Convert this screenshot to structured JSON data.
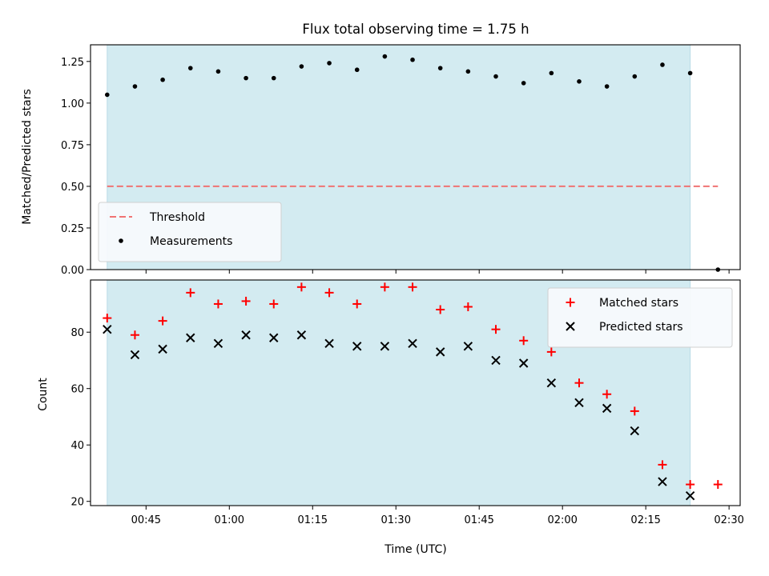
{
  "chart_data": [
    {
      "type": "scatter",
      "title": "Flux total observing time = 1.75 h",
      "xlabel": "",
      "ylabel": "Matched/Predicted stars",
      "ylim": [
        0,
        1.35
      ],
      "yticks": [
        "0.00",
        "0.25",
        "0.50",
        "0.75",
        "1.00",
        "1.25"
      ],
      "shaded_span": [
        "00:38",
        "02:23"
      ],
      "shade_color": "#d3ebf1",
      "threshold": {
        "name": "Threshold",
        "value": 0.5,
        "x_range": [
          "00:38",
          "02:28"
        ],
        "color": "#f07373",
        "style": "dashed"
      },
      "series": [
        {
          "name": "Measurements",
          "color": "#000000",
          "marker": "dot",
          "x": [
            "00:38",
            "00:43",
            "00:48",
            "00:53",
            "00:58",
            "01:03",
            "01:08",
            "01:13",
            "01:18",
            "01:23",
            "01:28",
            "01:33",
            "01:38",
            "01:43",
            "01:48",
            "01:53",
            "01:58",
            "02:03",
            "02:08",
            "02:13",
            "02:18",
            "02:23",
            "02:28"
          ],
          "y": [
            1.05,
            1.1,
            1.14,
            1.21,
            1.19,
            1.15,
            1.15,
            1.22,
            1.24,
            1.2,
            1.28,
            1.26,
            1.21,
            1.19,
            1.16,
            1.12,
            1.18,
            1.13,
            1.1,
            1.16,
            1.23,
            1.18,
            0.0
          ]
        }
      ],
      "legend": {
        "position": "lower-left",
        "entries": [
          "Threshold",
          "Measurements"
        ]
      },
      "grid": false
    },
    {
      "type": "scatter",
      "title": "",
      "xlabel": "Time (UTC)",
      "ylabel": "Count",
      "xlim": [
        "00:35",
        "02:32"
      ],
      "xticks": [
        "00:45",
        "01:00",
        "01:15",
        "01:30",
        "01:45",
        "02:00",
        "02:15",
        "02:30"
      ],
      "ylim": [
        18.5,
        98.5
      ],
      "yticks": [
        "20",
        "40",
        "60",
        "80"
      ],
      "shaded_span": [
        "00:38",
        "02:23"
      ],
      "series": [
        {
          "name": "Matched stars",
          "color": "#ff0000",
          "marker": "plus",
          "x": [
            "00:38",
            "00:43",
            "00:48",
            "00:53",
            "00:58",
            "01:03",
            "01:08",
            "01:13",
            "01:18",
            "01:23",
            "01:28",
            "01:33",
            "01:38",
            "01:43",
            "01:48",
            "01:53",
            "01:58",
            "02:03",
            "02:08",
            "02:13",
            "02:18",
            "02:23",
            "02:28"
          ],
          "y": [
            85,
            79,
            84,
            94,
            90,
            91,
            90,
            96,
            94,
            90,
            96,
            96,
            88,
            89,
            81,
            77,
            73,
            62,
            58,
            52,
            33,
            26,
            26
          ]
        },
        {
          "name": "Predicted stars",
          "color": "#000000",
          "marker": "x",
          "x": [
            "00:38",
            "00:43",
            "00:48",
            "00:53",
            "00:58",
            "01:03",
            "01:08",
            "01:13",
            "01:18",
            "01:23",
            "01:28",
            "01:33",
            "01:38",
            "01:43",
            "01:48",
            "01:53",
            "01:58",
            "02:03",
            "02:08",
            "02:13",
            "02:18",
            "02:23"
          ],
          "y": [
            81,
            72,
            74,
            78,
            76,
            79,
            78,
            79,
            76,
            75,
            75,
            76,
            73,
            75,
            70,
            69,
            62,
            55,
            53,
            45,
            27,
            22
          ]
        }
      ],
      "legend": {
        "position": "upper-right",
        "entries": [
          "Matched stars",
          "Predicted stars"
        ]
      },
      "grid": false
    }
  ]
}
